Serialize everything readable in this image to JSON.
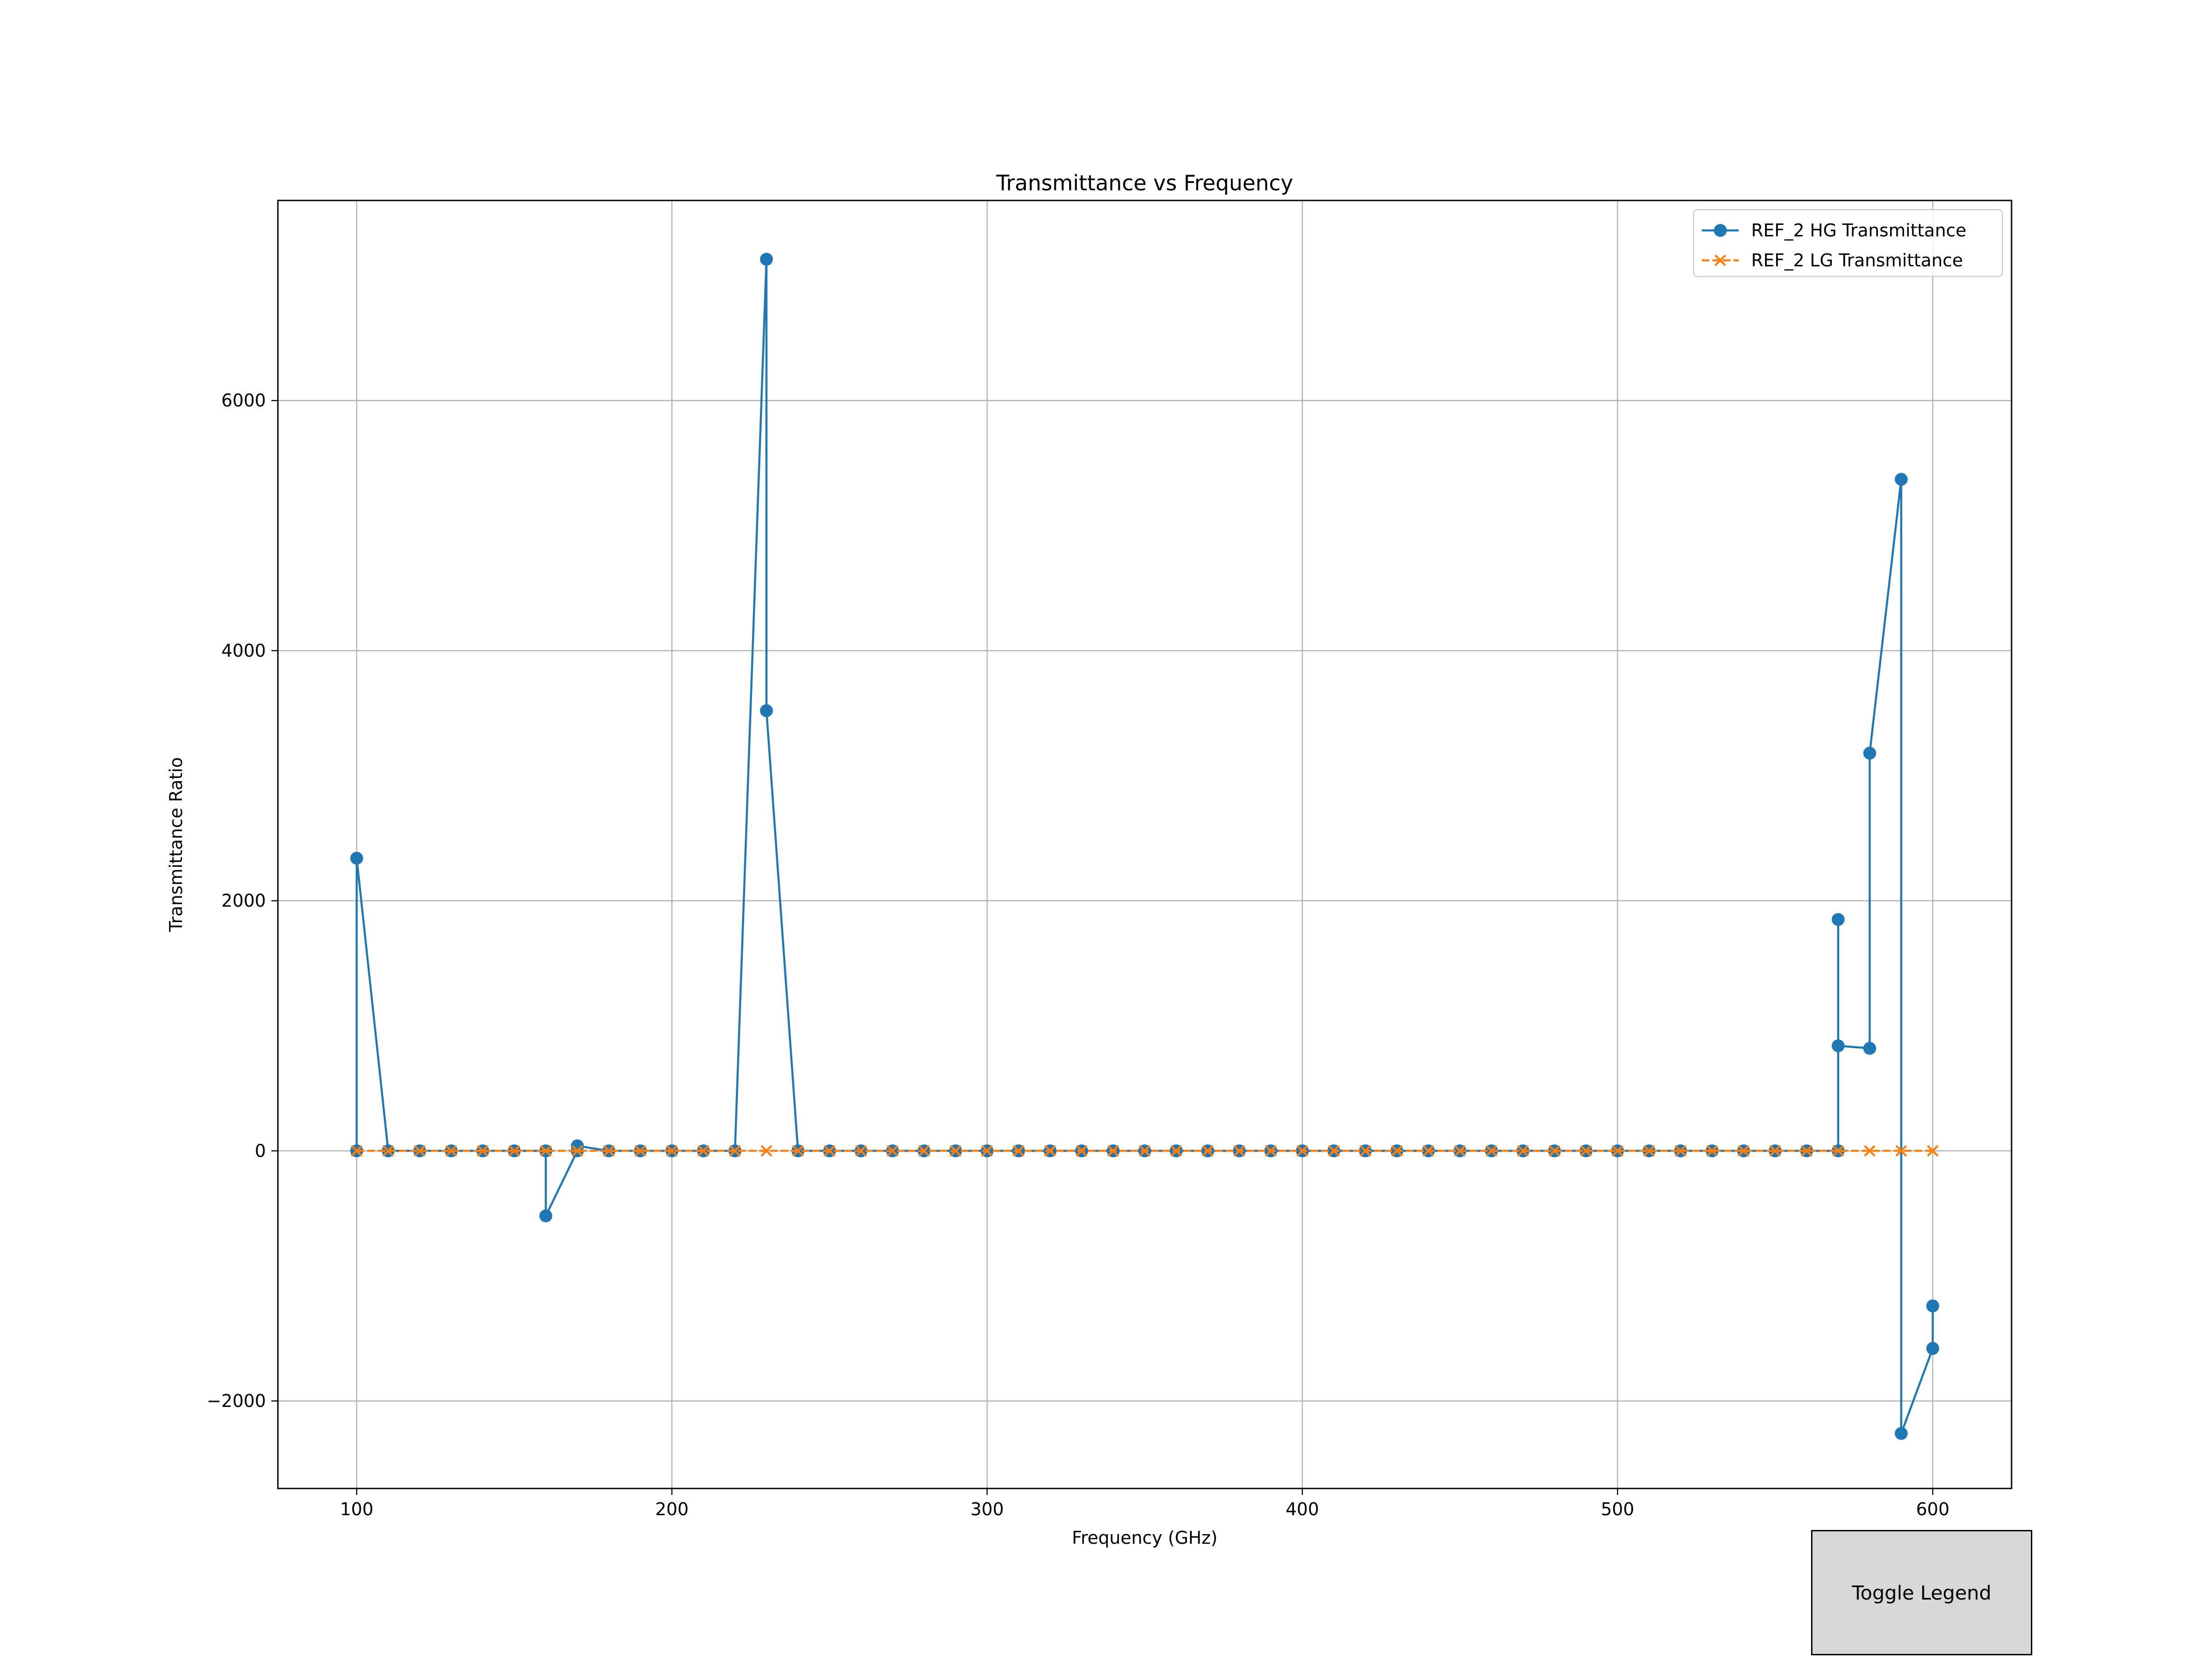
{
  "colors": {
    "hg": "#1f77b4",
    "lg": "#ff7f0e",
    "grid": "#b0b0b0",
    "axes": "#000000"
  },
  "toggle_legend": {
    "label": "Toggle Legend"
  },
  "chart_data": {
    "type": "line",
    "title": "Transmittance vs Frequency",
    "xlabel": "Frequency (GHz)",
    "ylabel": "Transmittance Ratio",
    "xlim": [
      75,
      625
    ],
    "ylim": [
      -2700,
      7600
    ],
    "xticks": [
      100,
      200,
      300,
      400,
      500,
      600
    ],
    "yticks": [
      -2000,
      0,
      2000,
      4000,
      6000
    ],
    "grid": true,
    "legend_position": "upper right",
    "series": [
      {
        "name": "REF_2 HG Transmittance",
        "marker": "circle",
        "linestyle": "solid",
        "color": "#1f77b4",
        "x": [
          100,
          100,
          110,
          120,
          130,
          140,
          150,
          160,
          160,
          170,
          170,
          180,
          190,
          200,
          210,
          220,
          230,
          230,
          240,
          250,
          260,
          270,
          280,
          290,
          300,
          310,
          320,
          330,
          340,
          350,
          360,
          370,
          380,
          390,
          400,
          410,
          420,
          430,
          440,
          450,
          460,
          470,
          480,
          490,
          500,
          510,
          520,
          530,
          540,
          550,
          560,
          570,
          570,
          570,
          580,
          580,
          590,
          590,
          600,
          600
        ],
        "y": [
          0,
          2340,
          0,
          0,
          0,
          0,
          0,
          0,
          -520,
          0,
          40,
          0,
          0,
          0,
          0,
          0,
          7130,
          3520,
          0,
          0,
          0,
          0,
          0,
          0,
          0,
          0,
          0,
          0,
          0,
          0,
          0,
          0,
          0,
          0,
          0,
          0,
          0,
          0,
          0,
          0,
          0,
          0,
          0,
          0,
          0,
          0,
          0,
          0,
          0,
          0,
          0,
          0,
          1850,
          840,
          820,
          3180,
          5370,
          -2260,
          -1580,
          -1240
        ]
      },
      {
        "name": "REF_2 LG Transmittance",
        "marker": "x",
        "linestyle": "dashed",
        "color": "#ff7f0e",
        "x": [
          100,
          110,
          120,
          130,
          140,
          150,
          160,
          170,
          180,
          190,
          200,
          210,
          220,
          230,
          240,
          250,
          260,
          270,
          280,
          290,
          300,
          310,
          320,
          330,
          340,
          350,
          360,
          370,
          380,
          390,
          400,
          410,
          420,
          430,
          440,
          450,
          460,
          470,
          480,
          490,
          500,
          510,
          520,
          530,
          540,
          550,
          560,
          570,
          580,
          590,
          600
        ],
        "y": [
          0,
          0,
          0,
          0,
          0,
          0,
          0,
          0,
          0,
          0,
          0,
          0,
          0,
          0,
          0,
          0,
          0,
          0,
          0,
          0,
          0,
          0,
          0,
          0,
          0,
          0,
          0,
          0,
          0,
          0,
          0,
          0,
          0,
          0,
          0,
          0,
          0,
          0,
          0,
          0,
          0,
          0,
          0,
          0,
          0,
          0,
          0,
          0,
          0,
          0,
          0
        ]
      }
    ]
  }
}
